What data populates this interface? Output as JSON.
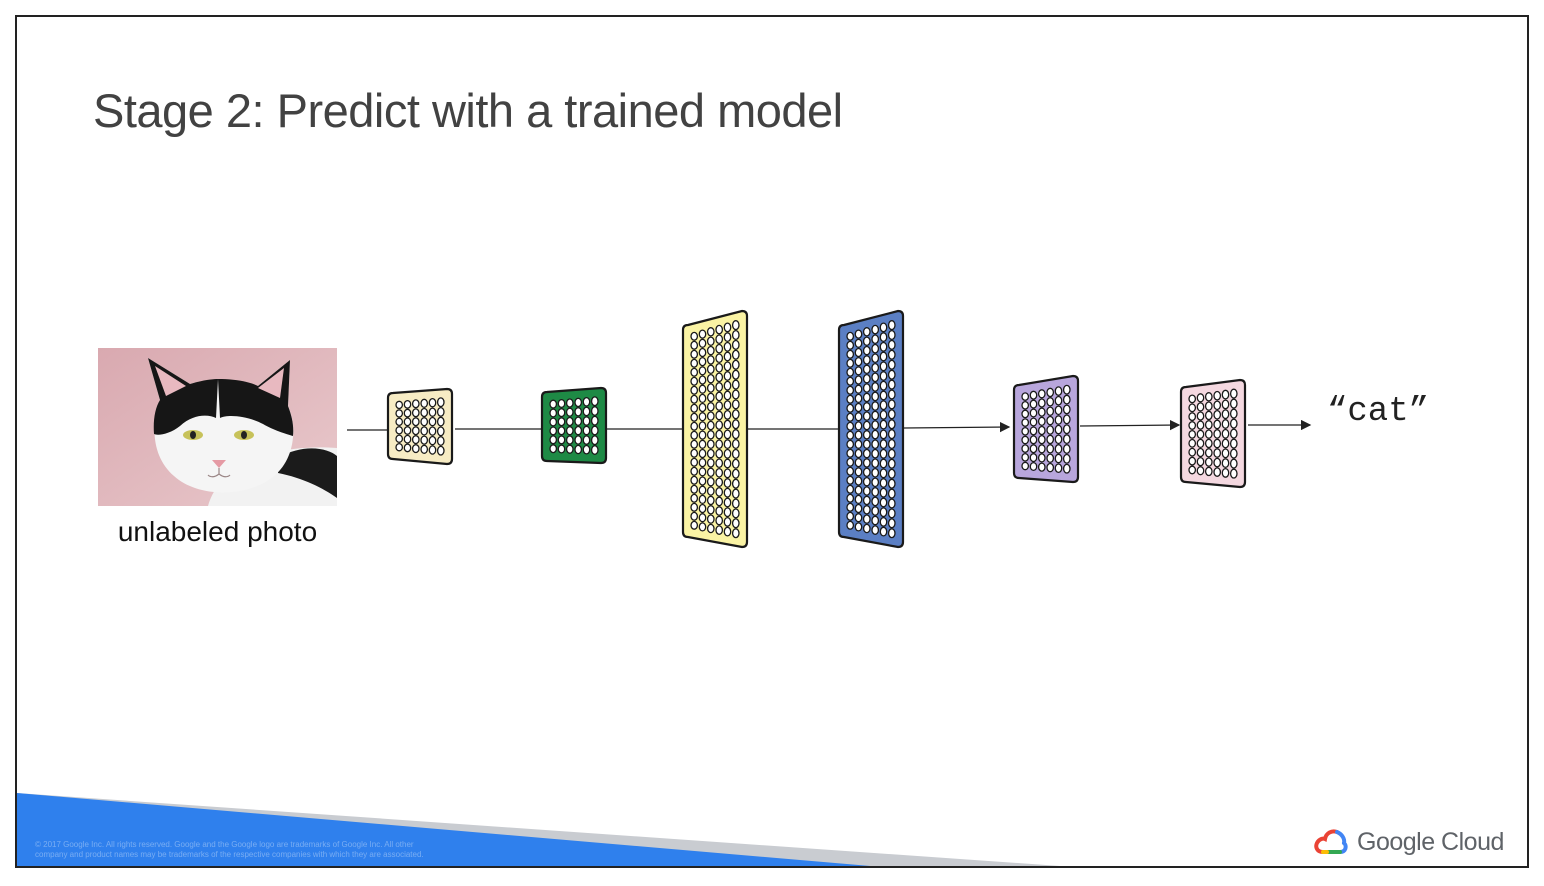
{
  "slide": {
    "title": "Stage 2: Predict with a trained model",
    "photo_caption": "unlabeled photo",
    "output_label": "“cat”",
    "legal_line_1": "© 2017 Google Inc. All rights reserved. Google and the Google logo are trademarks of Google Inc. All other",
    "legal_line_2": "company and product names may be trademarks of the respective companies with which they are associated.",
    "brand_word": "Google Cloud",
    "brand_icon": "google-cloud-logo-icon"
  },
  "layers": [
    {
      "name": "layer-1",
      "color": "#f7ecc4",
      "cols": 6,
      "rows": 6
    },
    {
      "name": "layer-2",
      "color": "#1e8a45",
      "cols": 6,
      "rows": 6
    },
    {
      "name": "layer-3",
      "color": "#faf3a4",
      "cols": 6,
      "rows": 22
    },
    {
      "name": "layer-4",
      "color": "#5b7fc4",
      "cols": 6,
      "rows": 22
    },
    {
      "name": "layer-5",
      "color": "#b8a6dc",
      "cols": 6,
      "rows": 9
    },
    {
      "name": "layer-6",
      "color": "#f4d8e0",
      "cols": 6,
      "rows": 9
    }
  ],
  "colors": {
    "footer_blue": "#2f80ed",
    "footer_gray": "#c9ccd1",
    "title_text": "#424242"
  }
}
